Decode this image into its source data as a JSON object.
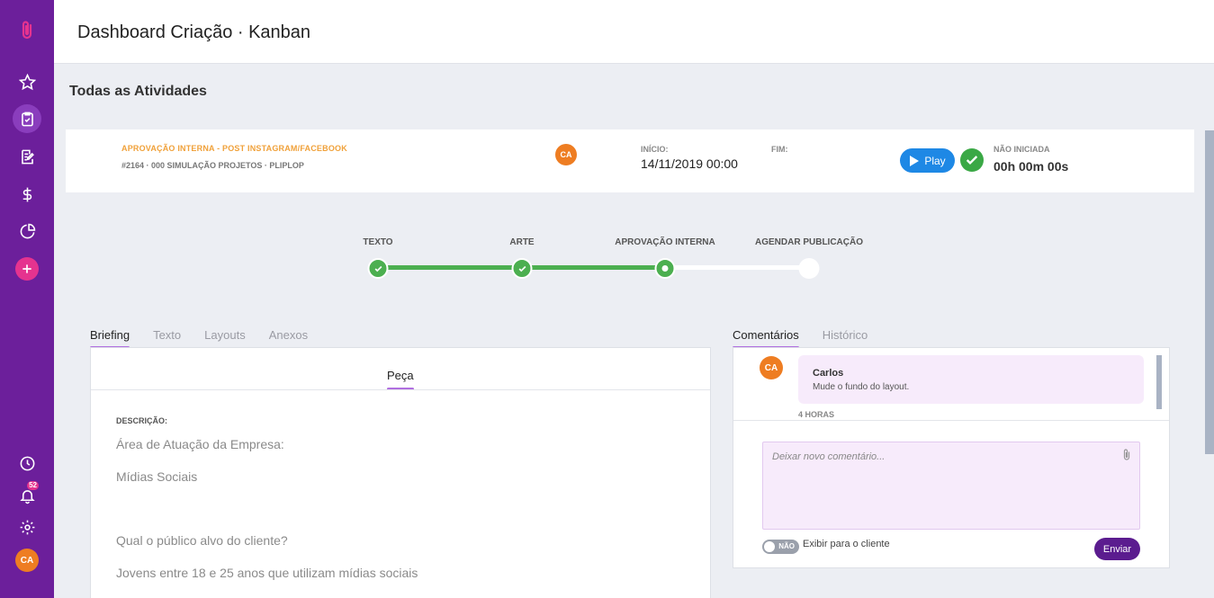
{
  "header": {
    "title": "Dashboard Criação · Kanban"
  },
  "section_title": "Todas as Atividades",
  "sidebar": {
    "notifications_count": "52",
    "user_initials": "CA"
  },
  "activity": {
    "category": "APROVAÇÃO INTERNA - POST INSTAGRAM/FACEBOOK",
    "project": "#2164 · 000 SIMULAÇÃO PROJETOS · PLIPLOP",
    "assignee_initials": "CA",
    "start_label": "INÍCIO:",
    "start_value": "14/11/2019 00:00",
    "end_label": "FIM:",
    "play_label": "Play",
    "status_label": "NÃO INICIADA",
    "timer": "00h 00m 00s"
  },
  "stepper": {
    "steps": [
      {
        "label": "TEXTO",
        "state": "done"
      },
      {
        "label": "ARTE",
        "state": "done"
      },
      {
        "label": "APROVAÇÃO INTERNA",
        "state": "current"
      },
      {
        "label": "AGENDAR PUBLICAÇÃO",
        "state": "pending"
      }
    ]
  },
  "left_tabs": [
    "Briefing",
    "Texto",
    "Layouts",
    "Anexos"
  ],
  "right_tabs": [
    "Comentários",
    "Histórico"
  ],
  "briefing": {
    "subtab": "Peça",
    "desc_label": "DESCRIÇÃO:",
    "lines": [
      "Área de Atuação da Empresa:",
      "Mídias Sociais",
      "Qual o público alvo do cliente?",
      "Jovens entre 18 e 25 anos que utilizam mídias sociais"
    ]
  },
  "comments": {
    "items": [
      {
        "initials": "CA",
        "author": "Carlos",
        "text": "Mude o fundo do layout.",
        "time": "4 HORAS"
      }
    ],
    "placeholder": "Deixar novo comentário...",
    "toggle_label": "NÃO",
    "show_client_label": "Exibir para o cliente",
    "send_label": "Enviar"
  },
  "colors": {
    "sidebar": "#6c1f9b",
    "accent": "#e5338f",
    "category": "#f0a13a",
    "progress": "#4caf50",
    "play": "#1e88e5",
    "send": "#5b1c8f"
  },
  "icons": [
    "paperclip-icon",
    "star-icon",
    "clipboard-check-icon",
    "edit-icon",
    "dollar-icon",
    "pie-chart-icon",
    "plus-icon",
    "clock-icon",
    "bell-icon",
    "gear-icon",
    "play-icon",
    "check-icon"
  ]
}
